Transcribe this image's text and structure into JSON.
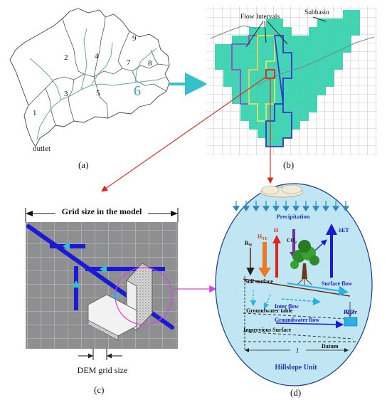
{
  "panel_a": {
    "caption": "(a)",
    "outlet_label": "outlet",
    "subbasin_numbers": [
      "1",
      "2",
      "3",
      "4",
      "5",
      "6",
      "7",
      "8",
      "9"
    ]
  },
  "panel_b": {
    "caption": "(b)",
    "flow_intervals_label": "Flow Intervals",
    "subbasin_label": "Subbasin"
  },
  "panel_c": {
    "caption": "(c)",
    "grid_size_label": "Grid size in the model",
    "dem_grid_size_label": "DEM grid size"
  },
  "panel_d": {
    "caption": "(d)",
    "precipitation": "Precipitation",
    "rn": "R",
    "rn_sub": "N",
    "hte": "H",
    "hte_sub": "TE",
    "h": "H",
    "co2": "CO",
    "co2_sub": "2",
    "et": "λET",
    "soil_surface": "Soil surface",
    "surface_flow": "Surface flow",
    "inter_flow": "Inter flow",
    "groundwater_table": "Groundwater table",
    "river": "River",
    "groundwater_flow": "Groundwater flow",
    "impervious_surface": "Impervious Surface",
    "datum": "Datum",
    "length": "l",
    "hillslope_unit": "Hillslope Unit"
  },
  "colors": {
    "teal": "#3fd7b3",
    "arrow_cyan": "#36c0cc",
    "arrow_red": "#e2231a",
    "deep_blue": "#1a1ad6",
    "panel_c_bg": "#8f8f8f",
    "ellipse_fill": "#bfe6f2"
  }
}
